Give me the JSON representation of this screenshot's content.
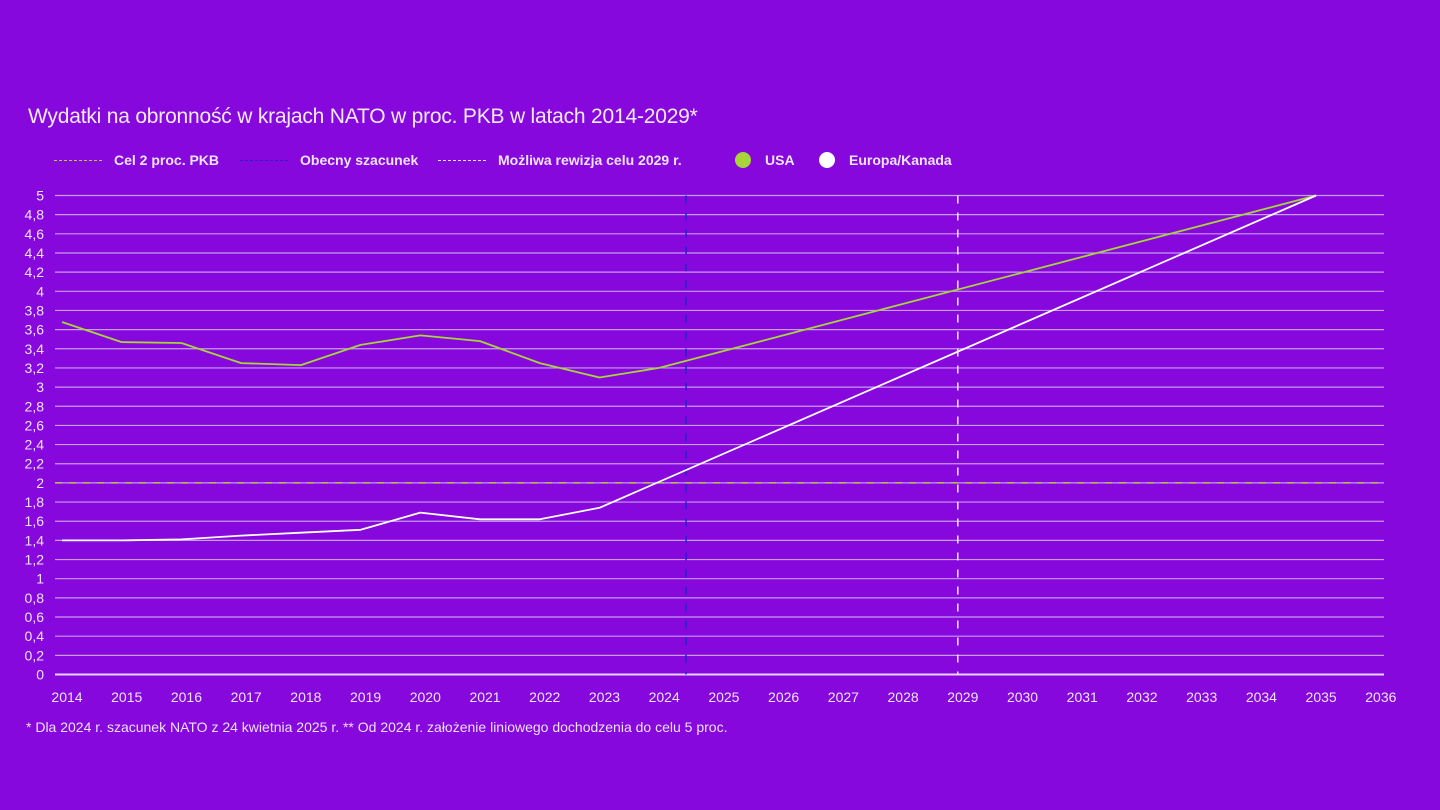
{
  "chart_data": {
    "type": "line",
    "title": "Wydatki na obronność w krajach NATO w proc. PKB w latach 2014-2029*",
    "xlabel": "",
    "ylabel": "",
    "xlim": [
      2014,
      2036
    ],
    "ylim": [
      0,
      5
    ],
    "grid": true,
    "legend_position": "top-left",
    "x_ticks": [
      "2014",
      "2015",
      "2016",
      "2017",
      "2018",
      "2019",
      "2020",
      "2021",
      "2022",
      "2023",
      "2024",
      "2025",
      "2026",
      "2027",
      "2028",
      "2029",
      "2030",
      "2031",
      "2032",
      "2033",
      "2034",
      "2035",
      "2036"
    ],
    "y_ticks": [
      "0",
      "0,2",
      "0,4",
      "0,6",
      "0,8",
      "1",
      "1,2",
      "1,4",
      "1,6",
      "1,8",
      "2",
      "2,2",
      "2,4",
      "2,6",
      "2,8",
      "3",
      "3,2",
      "3,4",
      "3,6",
      "3,8",
      "4",
      "4,2",
      "4,4",
      "4,6",
      "4,8",
      "5"
    ],
    "series": [
      {
        "name": "USA",
        "color": "#a6d63a",
        "x": [
          2014,
          2015,
          2016,
          2017,
          2018,
          2019,
          2020,
          2021,
          2022,
          2023,
          2024,
          2035
        ],
        "values": [
          3.68,
          3.47,
          3.46,
          3.25,
          3.23,
          3.44,
          3.54,
          3.48,
          3.25,
          3.1,
          3.2,
          5.0
        ]
      },
      {
        "name": "Europa/Kanada",
        "color": "#ffffff",
        "x": [
          2014,
          2015,
          2016,
          2017,
          2018,
          2019,
          2020,
          2021,
          2022,
          2023,
          2035
        ],
        "values": [
          1.4,
          1.4,
          1.41,
          1.45,
          1.48,
          1.51,
          1.69,
          1.62,
          1.62,
          1.74,
          5.0
        ]
      }
    ],
    "reference_lines": [
      {
        "name": "Cel 2 proc. PKB",
        "orientation": "horizontal",
        "value": 2,
        "color": "#b8c83a",
        "style": "dashed"
      },
      {
        "name": "Obecny szacunek",
        "orientation": "vertical",
        "value": 2024.45,
        "color": "#2a1ec8",
        "style": "dashed"
      },
      {
        "name": "Możliwa rewizja celu 2029 r.",
        "orientation": "vertical",
        "value": 2029,
        "color": "#f2e6fc",
        "style": "dashed"
      }
    ],
    "footnote": "* Dla 2024 r. szacunek NATO z 24 kwietnia 2025 r. ** Od 2024 r. założenie liniowego dochodzenia do celu 5 proc."
  },
  "legend": {
    "target": "Cel 2 proc. PKB",
    "current": "Obecny szacunek",
    "revision": "Możliwa rewizja celu 2029 r.",
    "usa": "USA",
    "europe": "Europa/Kanada"
  },
  "colors": {
    "background": "#8608dc",
    "grid": "#c89af0",
    "usa": "#a6d63a",
    "europe": "#ffffff",
    "target": "#b8c83a",
    "current": "#2a1ec8",
    "revision": "#f2e6fc"
  }
}
